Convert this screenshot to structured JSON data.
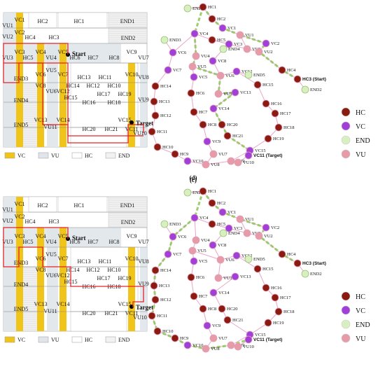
{
  "colors": {
    "VC": "#f0c419",
    "VU": "#dfe5ea",
    "HC": "#ffffff",
    "END": "#f2f2f2",
    "nodeHC": "#8b1a10",
    "nodeVC": "#a040d8",
    "nodeEND": "#d8f0c0",
    "nodeVU": "#e79aa7",
    "route": "#e0242a",
    "arrow": "#8cc75a"
  },
  "panels": [
    {
      "caption": "(c)",
      "map_labels": {
        "start": "Start",
        "target": "Target",
        "cells": [
          "VU1",
          "VC1",
          "HC2",
          "HC1",
          "END1",
          "VC2",
          "VU2",
          "HC4",
          "HC3",
          "END2",
          "VC3",
          "VU3",
          "HC5",
          "VC4",
          "VU4",
          "VC5",
          "HC6",
          "HC7",
          "HC8",
          "VC9",
          "VU7",
          "END3",
          "VU5",
          "VC6",
          "VC7",
          "HC13",
          "HC11",
          "VC10",
          "VU8",
          "VU6",
          "VC8",
          "HC14",
          "HC12",
          "HC10",
          "END4",
          "VC12",
          "HC15",
          "HC17",
          "HC19",
          "VU9",
          "HC16",
          "HC18",
          "END5",
          "VC13",
          "VC14",
          "VC15",
          "VU11",
          "HC20",
          "HC21",
          "VC11",
          "VU10"
        ]
      },
      "graph_labels": [
        "END1",
        "HC1",
        "HC2",
        "VC1",
        "VU1",
        "VC4",
        "VC3",
        "VU3",
        "VU2",
        "END3",
        "HC5",
        "END4",
        "VC2",
        "VC6",
        "VU4",
        "VC8",
        "HC4",
        "HC3 (Start)",
        "END2",
        "VC7",
        "VU5",
        "VU6",
        "VC12",
        "END5",
        "HC14",
        "VC5",
        "VU11",
        "VC13",
        "HC15",
        "HC6",
        "HC16",
        "HC13",
        "VC14",
        "HC17",
        "HC12",
        "HC7",
        "HC20",
        "HC18",
        "HC8",
        "HC21",
        "HC11",
        "VC9",
        "HC19",
        "HC10",
        "VU7",
        "VC15",
        "HC9",
        "VC10",
        "VU8",
        "VU9",
        "VU10",
        "VC11 (Target)"
      ]
    },
    {
      "caption": "(d)",
      "map_labels": {
        "start": "Start",
        "target": "Target",
        "cells": [
          "VU1",
          "VC1",
          "HC2",
          "HC1",
          "END1",
          "VC2",
          "VU2",
          "HC4",
          "HC3",
          "END2",
          "VC3",
          "VU3",
          "HC5",
          "VC4",
          "VU4",
          "VC5",
          "HC6",
          "HC7",
          "HC8",
          "VC9",
          "VU7",
          "END3",
          "VU5",
          "VC6",
          "VC7",
          "HC13",
          "HC11",
          "VC10",
          "VU8",
          "VU6",
          "VC8",
          "HC14",
          "HC12",
          "HC10",
          "END4",
          "VC12",
          "HC15",
          "HC17",
          "HC19",
          "VU9",
          "HC16",
          "HC18",
          "END5",
          "VC13",
          "VC14",
          "VC15",
          "VU11",
          "HC20",
          "HC21",
          "VC11",
          "VU10"
        ]
      },
      "graph_labels": [
        "END1",
        "HC1",
        "HC2",
        "VC1",
        "VU1",
        "VC4",
        "VC3",
        "VU3",
        "VU2",
        "END3",
        "HC5",
        "END4",
        "VC2",
        "VC6",
        "VU4",
        "VC8",
        "HC4",
        "HC3 (Start)",
        "END2",
        "VC7",
        "VU5",
        "VU6",
        "VC12",
        "END5",
        "HC14",
        "VC5",
        "VU11",
        "VC13",
        "HC15",
        "HC6",
        "HC16",
        "HC13",
        "VC14",
        "HC17",
        "HC12",
        "HC7",
        "HC20",
        "HC18",
        "HC8",
        "HC21",
        "HC11",
        "VC9",
        "HC19",
        "HC10",
        "VU7",
        "VC15",
        "HC9",
        "VC10",
        "VU8",
        "VU9",
        "VU10",
        "VC11 (Target)"
      ]
    }
  ],
  "map_legend": [
    "VC",
    "VU",
    "HC",
    "END"
  ],
  "node_legend": [
    "HC",
    "VC",
    "END",
    "VU"
  ]
}
